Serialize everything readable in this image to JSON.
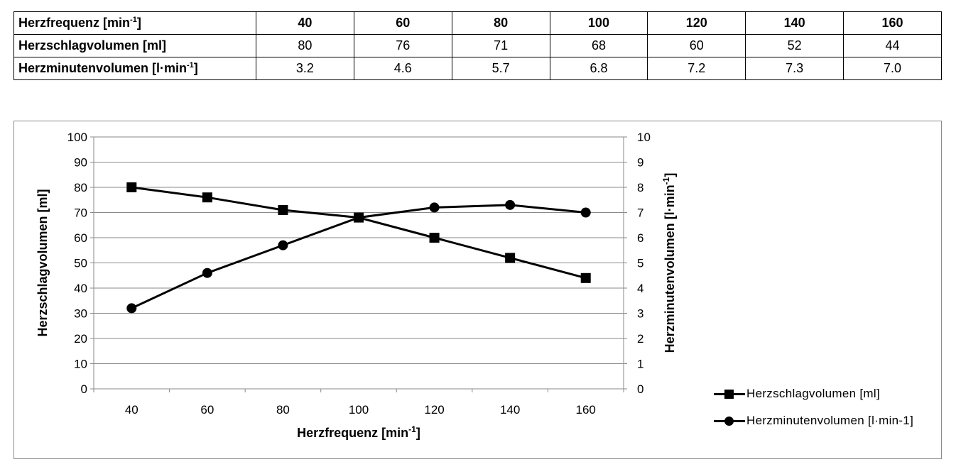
{
  "table": {
    "rows": [
      {
        "label": "Herzfrequenz [min",
        "sup": "-1",
        "suffix": "]",
        "values": [
          "40",
          "60",
          "80",
          "100",
          "120",
          "140",
          "160"
        ]
      },
      {
        "label": "Herzschlagvolumen [ml]",
        "sup": "",
        "suffix": "",
        "values": [
          "80",
          "76",
          "71",
          "68",
          "60",
          "52",
          "44"
        ]
      },
      {
        "label": "Herzminutenvolumen [l·min",
        "sup": "-1",
        "suffix": "]",
        "values": [
          "3.2",
          "4.6",
          "5.7",
          "6.8",
          "7.2",
          "7.3",
          "7.0"
        ]
      }
    ]
  },
  "chart_data": {
    "type": "line",
    "x": [
      40,
      60,
      80,
      100,
      120,
      140,
      160
    ],
    "categories": [
      "40",
      "60",
      "80",
      "100",
      "120",
      "140",
      "160"
    ],
    "xlabel": {
      "text": "Herzfrequenz [min",
      "sup": "-1",
      "suffix": "]"
    },
    "ylabel_left": "Herzschlagvolumen [ml]",
    "ylabel_right": {
      "text": "Herzminutenvolumen [l·min",
      "sup": "-1",
      "suffix": "]"
    },
    "ylim_left": [
      0,
      100
    ],
    "ylim_right": [
      0,
      10
    ],
    "yticks_left": [
      "0",
      "10",
      "20",
      "30",
      "40",
      "50",
      "60",
      "70",
      "80",
      "90",
      "100"
    ],
    "yticks_right": [
      "0",
      "1",
      "2",
      "3",
      "4",
      "5",
      "6",
      "7",
      "8",
      "9",
      "10"
    ],
    "grid": true,
    "legend_position": "right",
    "series": [
      {
        "name": "Herzschlagvolumen [ml]",
        "axis": "left",
        "marker": "square",
        "color": "#000000",
        "values": [
          80,
          76,
          71,
          68,
          60,
          52,
          44
        ]
      },
      {
        "name": "Herzminutenvolumen [l·min-1]",
        "axis": "right",
        "marker": "circle",
        "color": "#000000",
        "values": [
          3.2,
          4.6,
          5.7,
          6.8,
          7.2,
          7.3,
          7.0
        ]
      }
    ]
  }
}
